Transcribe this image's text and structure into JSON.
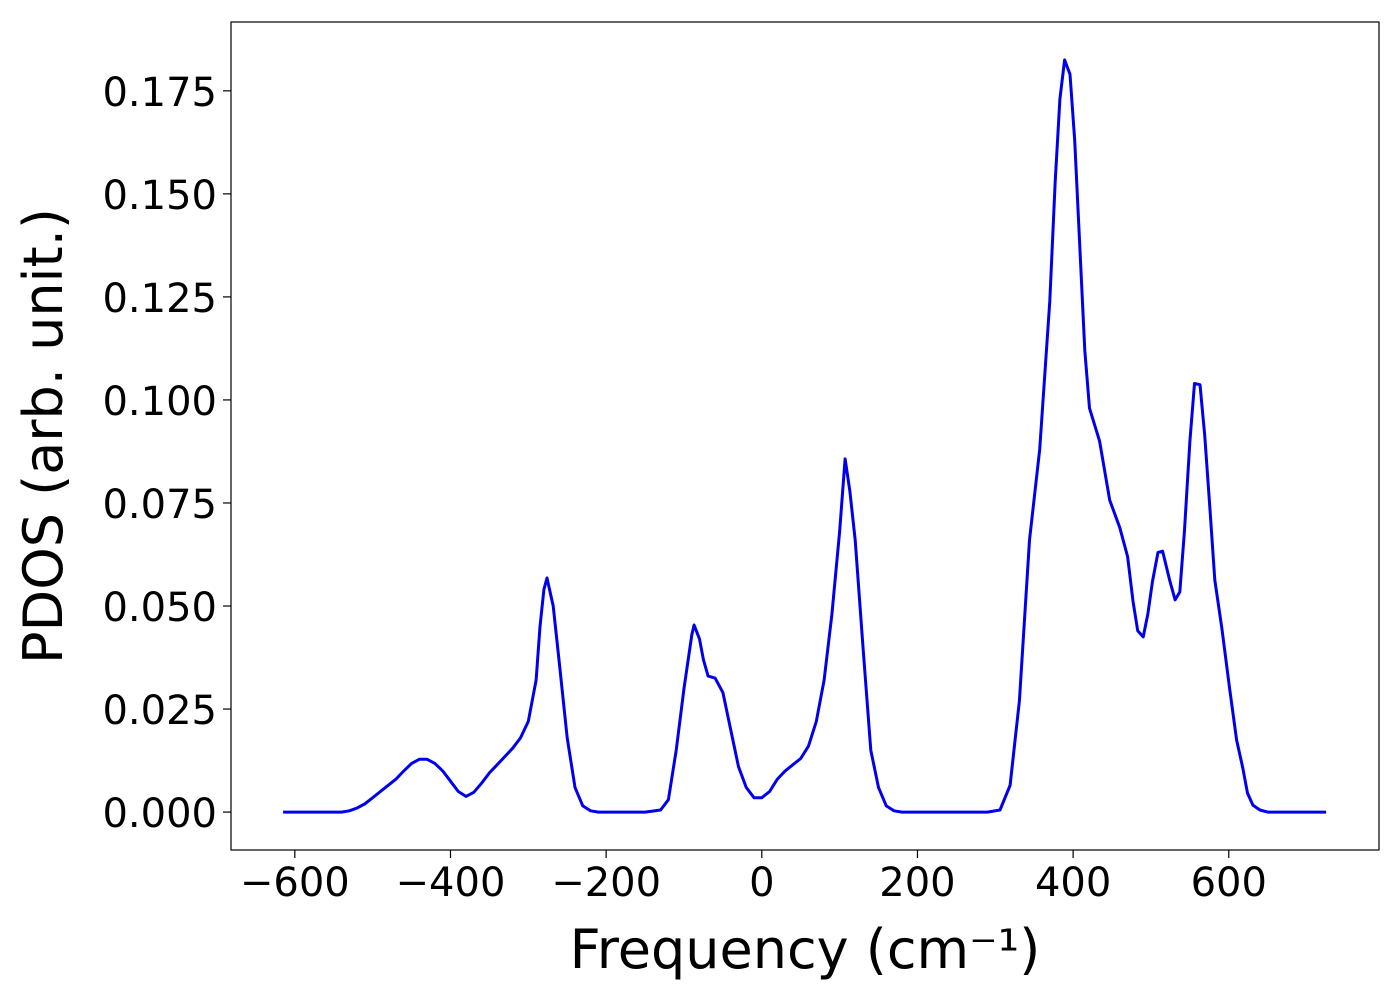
{
  "chart_data": {
    "type": "line",
    "x_label": "Frequency (cm⁻¹)",
    "y_label": "PDOS (arb. unit.)",
    "xlim": [
      -682,
      793
    ],
    "ylim": [
      -0.0092,
      0.1917
    ],
    "xticks": [
      {
        "value": -600,
        "label": "−600"
      },
      {
        "value": -400,
        "label": "−400"
      },
      {
        "value": -200,
        "label": "−200"
      },
      0,
      200,
      400,
      600
    ],
    "yticks": [
      {
        "value": 0,
        "label": "0.000"
      },
      {
        "value": 0.025,
        "label": "0.025"
      },
      {
        "value": 0.05,
        "label": "0.050"
      },
      {
        "value": 0.075,
        "label": "0.075"
      },
      {
        "value": 0.1,
        "label": "0.100"
      },
      {
        "value": 0.125,
        "label": "0.125"
      },
      {
        "value": 0.15,
        "label": "0.150"
      },
      {
        "value": 0.175,
        "label": "0.175"
      }
    ],
    "grid": false,
    "series": [
      {
        "color": "#0000ee",
        "x": [
          -615,
          -600,
          -580,
          -560,
          -540,
          -530,
          -520,
          -510,
          -500,
          -490,
          -480,
          -470,
          -460,
          -450,
          -440,
          -430,
          -420,
          -410,
          -400,
          -390,
          -380,
          -370,
          -360,
          -350,
          -340,
          -330,
          -320,
          -310,
          -300,
          -290,
          -285,
          -280,
          -276,
          -268,
          -260,
          -250,
          -240,
          -230,
          -220,
          -210,
          -180,
          -150,
          -130,
          -120,
          -110,
          -100,
          -90,
          -87,
          -80,
          -75,
          -69,
          -60,
          -50,
          -40,
          -30,
          -20,
          -10,
          0,
          10,
          20,
          30,
          40,
          50,
          60,
          70,
          80,
          90,
          100,
          107,
          113,
          120,
          130,
          140,
          150,
          160,
          170,
          180,
          220,
          260,
          290,
          306,
          319,
          331,
          344,
          357,
          370,
          377,
          383,
          389,
          396,
          402,
          415,
          421,
          434,
          447,
          460,
          470,
          477,
          483,
          490,
          496,
          502,
          509,
          515,
          524,
          531,
          537,
          543,
          550,
          556,
          563,
          569,
          576,
          582,
          591,
          601,
          610,
          618,
          624,
          631,
          640,
          650,
          680,
          725
        ],
        "values": [
          0,
          0,
          0,
          0,
          0,
          0.0003,
          0.001,
          0.002,
          0.0035,
          0.005,
          0.0065,
          0.008,
          0.01,
          0.0118,
          0.0128,
          0.0128,
          0.0118,
          0.01,
          0.0075,
          0.005,
          0.0038,
          0.0048,
          0.007,
          0.0095,
          0.0115,
          0.0135,
          0.0155,
          0.018,
          0.022,
          0.032,
          0.045,
          0.054,
          0.0568,
          0.05,
          0.036,
          0.018,
          0.006,
          0.0015,
          0.0003,
          0,
          0,
          0,
          0.0005,
          0.003,
          0.015,
          0.03,
          0.043,
          0.0454,
          0.042,
          0.037,
          0.033,
          0.0325,
          0.029,
          0.02,
          0.011,
          0.006,
          0.0035,
          0.0035,
          0.005,
          0.008,
          0.01,
          0.0115,
          0.013,
          0.016,
          0.022,
          0.032,
          0.048,
          0.068,
          0.0857,
          0.078,
          0.066,
          0.04,
          0.015,
          0.006,
          0.0015,
          0.0003,
          0,
          0,
          0,
          0,
          0.0005,
          0.0065,
          0.027,
          0.066,
          0.088,
          0.124,
          0.153,
          0.173,
          0.1825,
          0.179,
          0.163,
          0.112,
          0.098,
          0.09,
          0.0757,
          0.069,
          0.062,
          0.051,
          0.044,
          0.0425,
          0.048,
          0.056,
          0.063,
          0.0633,
          0.0563,
          0.0515,
          0.0534,
          0.068,
          0.09,
          0.104,
          0.1037,
          0.0915,
          0.073,
          0.0563,
          0.0447,
          0.03,
          0.0175,
          0.0107,
          0.0046,
          0.0017,
          0.0005,
          0,
          0,
          0
        ]
      }
    ]
  }
}
